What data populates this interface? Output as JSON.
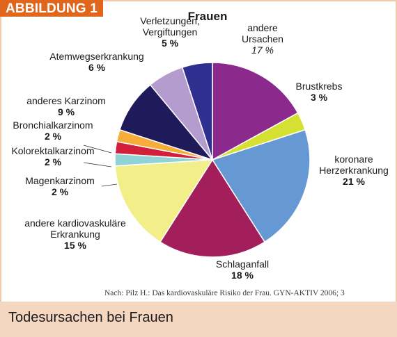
{
  "badge": "ABBILDUNG 1",
  "footer": "Todesursachen bei Frauen",
  "source": "Nach: Pilz H.: Das kardiovaskuläre Risiko der Frau. GYN-AKTIV 2006; 3",
  "chart_data": {
    "type": "pie",
    "title": "Frauen",
    "slices": [
      {
        "label": [
          "andere",
          "Ursachen"
        ],
        "value_label": "17 %",
        "value": 17,
        "color": "#8b2a8c",
        "italic": true
      },
      {
        "label": [
          "Brustkrebs"
        ],
        "value_label": "3 %",
        "value": 3,
        "color": "#d6e033"
      },
      {
        "label": [
          "koronare",
          "Herzerkrankung"
        ],
        "value_label": "21 %",
        "value": 21,
        "color": "#6699d3"
      },
      {
        "label": [
          "Schlaganfall"
        ],
        "value_label": "18 %",
        "value": 18,
        "color": "#a21f5c"
      },
      {
        "label": [
          "andere kardiovaskuläre",
          "Erkrankung"
        ],
        "value_label": "15 %",
        "value": 15,
        "color": "#f2ef8a"
      },
      {
        "label": [
          "Magenkarzinom"
        ],
        "value_label": "2 %",
        "value": 2,
        "color": "#8fd3d6"
      },
      {
        "label": [
          "Kolorektalkarzinom"
        ],
        "value_label": "2 %",
        "value": 2,
        "color": "#d21f3c"
      },
      {
        "label": [
          "Bronchialkarzinom"
        ],
        "value_label": "2 %",
        "value": 2,
        "color": "#f7ad3a"
      },
      {
        "label": [
          "anderes Karzinom"
        ],
        "value_label": "9 %",
        "value": 9,
        "color": "#1f1a5a"
      },
      {
        "label": [
          "Atemwegserkrankung"
        ],
        "value_label": "6 %",
        "value": 6,
        "color": "#b49ccf"
      },
      {
        "label": [
          "Verletzungen,",
          "Vergiftungen"
        ],
        "value_label": "5 %",
        "value": 5,
        "color": "#2e2f8f"
      }
    ]
  }
}
